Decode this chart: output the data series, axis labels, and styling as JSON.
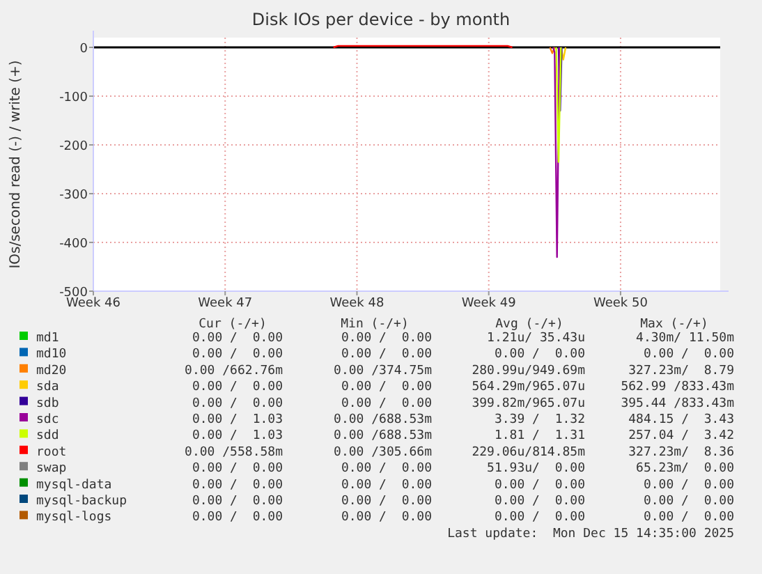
{
  "chart_data": {
    "type": "line",
    "title": "Disk IOs per device - by month",
    "ylabel": "IOs/second read (-) / write (+)",
    "xlim": [
      "2025-11-13T12:00",
      "2025-12-16T19:00"
    ],
    "xticks": [
      {
        "value": "2025-11-13T12:00",
        "label": "Week 46"
      },
      {
        "value": "2025-11-20T12:00",
        "label": "Week 47"
      },
      {
        "value": "2025-11-27T12:00",
        "label": "Week 48"
      },
      {
        "value": "2025-12-04T12:00",
        "label": "Week 49"
      },
      {
        "value": "2025-12-11T12:00",
        "label": "Week 50"
      }
    ],
    "ylim": [
      -500,
      20
    ],
    "yticks": [
      -500,
      -400,
      -300,
      -200,
      -100,
      0
    ],
    "grid": true,
    "legend": "bottom",
    "line_style": "solid",
    "marker": "none",
    "ref_lines": [
      {
        "axis": "y",
        "value": 0,
        "color": "#000000"
      }
    ],
    "series": [
      {
        "name": "md1",
        "color": "#00cc00"
      },
      {
        "name": "md10",
        "color": "#0066b3"
      },
      {
        "name": "md20",
        "color": "#ff8000",
        "x": [
          "2025-12-07T18:00",
          "2025-12-07T21:00",
          "2025-12-08T00:00"
        ],
        "values": [
          0,
          -12,
          0
        ]
      },
      {
        "name": "sda",
        "color": "#ffcc00",
        "x": [
          "2025-12-08T08:00",
          "2025-12-08T11:00",
          "2025-12-08T14:00"
        ],
        "values": [
          0,
          -25,
          0
        ]
      },
      {
        "name": "sdb",
        "color": "#330099",
        "x": [
          "2025-12-08T05:00",
          "2025-12-08T07:00",
          "2025-12-08T09:00"
        ],
        "values": [
          0,
          -130,
          0
        ]
      },
      {
        "name": "sdc",
        "color": "#990099",
        "x": [
          "2025-12-07T22:00",
          "2025-12-08T00:00",
          "2025-12-08T03:00",
          "2025-12-08T06:00"
        ],
        "values": [
          0,
          -10,
          -430,
          0
        ]
      },
      {
        "name": "sdd",
        "color": "#ccff00",
        "x": [
          "2025-12-08T02:00",
          "2025-12-08T05:00",
          "2025-12-08T08:00"
        ],
        "values": [
          0,
          -235,
          0
        ]
      },
      {
        "name": "root",
        "color": "#ff0000",
        "x": [
          "2025-11-26T06:00",
          "2025-11-26T12:00",
          "2025-12-05T12:00",
          "2025-12-05T18:00"
        ],
        "values": [
          0,
          3,
          3,
          0
        ]
      },
      {
        "name": "swap",
        "color": "#808080"
      },
      {
        "name": "mysql-data",
        "color": "#008f00"
      },
      {
        "name": "mysql-backup",
        "color": "#00487d"
      },
      {
        "name": "mysql-logs",
        "color": "#b35a00"
      }
    ],
    "annotations": [
      "Cur (-/+)",
      "Min (-/+)",
      "Avg (-/+)",
      "Max (-/+)",
      "0.00 /  0.00",
      "0.00 /  0.00",
      "1.21u/ 35.43u",
      "4.30m/ 11.50m",
      "0.00 /  0.00",
      "0.00 /  0.00",
      "0.00 /  0.00",
      "0.00 /  0.00",
      "0.00 /662.76m",
      "0.00 /374.75m",
      "280.99u/949.69m",
      "327.23m/  8.79",
      "0.00 /  0.00",
      "0.00 /  0.00",
      "564.29m/965.07u",
      "562.99 /833.43m",
      "0.00 /  0.00",
      "0.00 /  0.00",
      "399.82m/965.07u",
      "395.44 /833.43m",
      "0.00 /  1.03",
      "0.00 /688.53m",
      "3.39 /  1.32",
      "484.15 /  3.43",
      "0.00 /  1.03",
      "0.00 /688.53m",
      "1.81 /  1.31",
      "257.04 /  3.42",
      "0.00 /558.58m",
      "0.00 /305.66m",
      "229.06u/814.85m",
      "327.23m/  8.36",
      "0.00 /  0.00",
      "0.00 /  0.00",
      "51.93u/  0.00",
      "65.23m/  0.00",
      "0.00 /  0.00",
      "0.00 /  0.00",
      "0.00 /  0.00",
      "0.00 /  0.00",
      "0.00 /  0.00",
      "0.00 /  0.00",
      "0.00 /  0.00",
      "0.00 /  0.00",
      "0.00 /  0.00",
      "0.00 /  0.00",
      "0.00 /  0.00",
      "0.00 /  0.00",
      "Last update:  Mon Dec 15 14:35:00 2025"
    ]
  }
}
